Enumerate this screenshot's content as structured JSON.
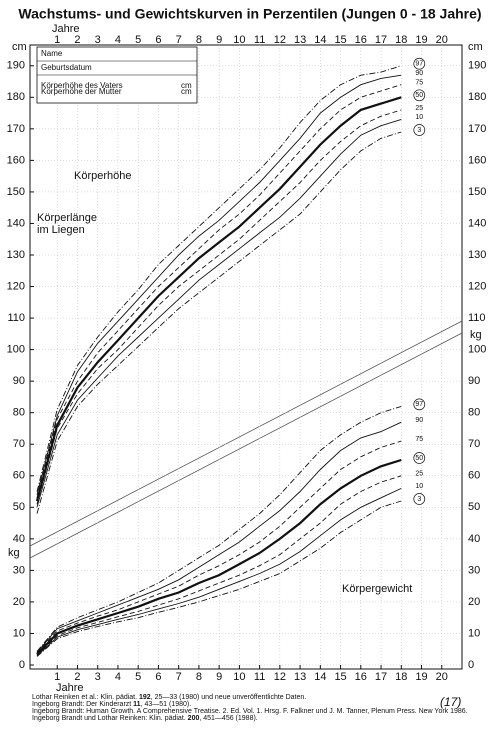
{
  "chart_data": {
    "type": "line",
    "title": "Wachstums- und Gewichtskurven in Perzentilen (Jungen 0 - 18 Jahre)",
    "x_label": "Jahre",
    "y_unit": "cm",
    "y2_unit": "kg",
    "annotations": [
      "Körperhöhe",
      "Körperlänge",
      "im Liegen",
      "Körpergewicht"
    ],
    "x": [
      0,
      1,
      2,
      3,
      4,
      5,
      6,
      7,
      8,
      9,
      10,
      11,
      12,
      13,
      14,
      15,
      16,
      17,
      18
    ],
    "xlim": [
      0,
      21
    ],
    "xticks": [
      1,
      2,
      3,
      4,
      5,
      6,
      7,
      8,
      9,
      10,
      11,
      12,
      13,
      14,
      15,
      16,
      17,
      18,
      19,
      20
    ],
    "ylim": [
      0,
      195
    ],
    "yticks": [
      0,
      10,
      20,
      30,
      40,
      50,
      60,
      70,
      80,
      90,
      100,
      110,
      120,
      130,
      140,
      150,
      160,
      170,
      180,
      190
    ],
    "grid": true,
    "series": [
      {
        "name": "97",
        "color": "#111",
        "dash": "dashdot",
        "circled": true,
        "values": [
          55,
          81,
          95,
          104,
          112,
          119,
          127,
          133,
          139,
          145,
          151,
          157,
          164,
          172,
          179,
          184,
          187,
          188,
          190
        ]
      },
      {
        "name": "90",
        "color": "#111",
        "dash": "solid",
        "values": [
          54,
          79,
          93,
          102,
          109,
          116,
          123,
          130,
          136,
          141,
          147,
          153,
          160,
          167,
          175,
          180,
          184,
          186,
          187
        ]
      },
      {
        "name": "75",
        "color": "#111",
        "dash": "dashed",
        "values": [
          53,
          78,
          90,
          99,
          106,
          113,
          120,
          126,
          132,
          138,
          143,
          149,
          156,
          163,
          170,
          176,
          180,
          182,
          184
        ]
      },
      {
        "name": "50",
        "color": "#111",
        "dash": "bold",
        "circled": true,
        "values": [
          52,
          76,
          88,
          96,
          103,
          110,
          117,
          123,
          129,
          134,
          139,
          145,
          151,
          158,
          165,
          171,
          176,
          178,
          180
        ]
      },
      {
        "name": "25",
        "color": "#111",
        "dash": "dashed",
        "values": [
          51,
          75,
          86,
          94,
          100,
          107,
          114,
          120,
          125,
          130,
          135,
          141,
          147,
          153,
          160,
          166,
          171,
          174,
          176
        ]
      },
      {
        "name": "10",
        "color": "#111",
        "dash": "solid",
        "values": [
          50,
          73,
          84,
          91,
          98,
          104,
          110,
          116,
          122,
          127,
          132,
          137,
          142,
          148,
          155,
          162,
          168,
          171,
          173
        ]
      },
      {
        "name": "3",
        "color": "#111",
        "dash": "dashdot",
        "circled": true,
        "values": [
          48,
          71,
          82,
          89,
          95,
          101,
          107,
          113,
          118,
          123,
          128,
          133,
          138,
          143,
          150,
          157,
          163,
          167,
          169
        ]
      },
      {
        "name": "97",
        "color": "#111",
        "dash": "dashdot",
        "circled": true,
        "values": [
          4.3,
          12,
          15,
          17.5,
          20,
          23,
          26,
          30,
          34,
          38,
          43,
          48,
          54,
          61,
          68,
          73,
          77,
          80,
          82
        ]
      },
      {
        "name": "90",
        "color": "#111",
        "dash": "solid",
        "values": [
          4,
          11.5,
          14,
          16.5,
          19,
          21.5,
          24,
          27,
          31,
          35,
          39,
          44,
          49,
          55,
          62,
          68,
          72,
          74,
          77
        ]
      },
      {
        "name": "75",
        "color": "#111",
        "dash": "dashed",
        "values": [
          3.8,
          10.8,
          13.3,
          15.5,
          17.5,
          20,
          22.5,
          25,
          28.5,
          31.5,
          35,
          39,
          44,
          50,
          56,
          62,
          66,
          69,
          71
        ]
      },
      {
        "name": "50",
        "color": "#111",
        "dash": "bold",
        "circled": true,
        "values": [
          3.4,
          10,
          12.5,
          14.5,
          16.5,
          18.5,
          21,
          23,
          26,
          28.5,
          32,
          35.5,
          40,
          45,
          51,
          56,
          60,
          63,
          65
        ]
      },
      {
        "name": "25",
        "color": "#111",
        "dash": "dashed",
        "values": [
          3.1,
          9.3,
          11.8,
          13.5,
          15.3,
          17,
          19,
          21,
          23.5,
          26,
          28.5,
          31.5,
          35,
          40,
          45,
          51,
          55,
          58,
          60
        ]
      },
      {
        "name": "10",
        "color": "#111",
        "dash": "solid",
        "values": [
          2.9,
          8.8,
          11.2,
          12.8,
          14.5,
          16,
          17.8,
          19.5,
          21.5,
          24,
          26.5,
          29,
          32,
          36,
          41,
          46,
          50,
          53,
          56
        ]
      },
      {
        "name": "3",
        "color": "#111",
        "dash": "dashdot",
        "circled": true,
        "values": [
          2.7,
          8.3,
          10.6,
          12.2,
          13.7,
          15,
          16.7,
          18.3,
          20,
          22,
          24,
          26.5,
          29,
          33,
          37,
          42,
          46,
          50,
          52
        ]
      }
    ]
  },
  "form": {
    "fields": [
      "Name",
      "Geburtsdatum",
      "Körperhöhe des Vaters",
      "Körperhöhe der Mutter"
    ],
    "unit": "cm"
  },
  "references": [
    [
      "Lothar Reinken et al.: Klin. pädiat. ",
      "192",
      ", 25—33 (1980) und neue unveröffentlichte Daten."
    ],
    [
      "Ingeborg Brandt: Der Kinderarzt ",
      "11",
      ", 43—51 (1980)."
    ],
    [
      "Ingeborg Brandt: Human Growth. A Comprehensive Treatise. 2. Ed. Vol. 1. Hrsg. F. Falkner und J. M. Tanner, Plenum Press. New York 1986."
    ],
    [
      "Ingeborg Brandt und Lothar Reinken: Klin. pädiat. ",
      "200",
      ", 451—456 (1988)."
    ]
  ],
  "page_number": "(17)"
}
